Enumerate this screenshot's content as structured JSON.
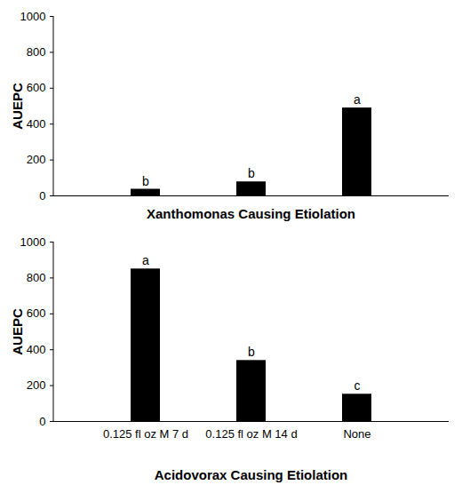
{
  "chart_data": [
    {
      "type": "bar",
      "x_label": "Xanthomonas Causing Etiolation",
      "y_label": "AUEPC",
      "categories": [
        null,
        null,
        null
      ],
      "values": [
        37,
        78,
        490
      ],
      "annotations": [
        "b",
        "b",
        "a"
      ],
      "color": "#000000",
      "ylim": [
        0,
        1000
      ],
      "yticks": [
        0,
        200,
        400,
        600,
        800,
        1000
      ],
      "grid": false,
      "tick_labels": "y"
    },
    {
      "type": "bar",
      "x_label": "Acidovorax Causing Etiolation",
      "y_label": "AUEPC",
      "categories": [
        "0.125 fl oz M 7 d",
        "0.125 fl oz M 14 d",
        "None"
      ],
      "values": [
        850,
        340,
        152
      ],
      "annotations": [
        "a",
        "b",
        "c"
      ],
      "color": "#000000",
      "ylim": [
        0,
        1000
      ],
      "yticks": [
        0,
        200,
        400,
        600,
        800,
        1000
      ],
      "grid": false
    }
  ]
}
